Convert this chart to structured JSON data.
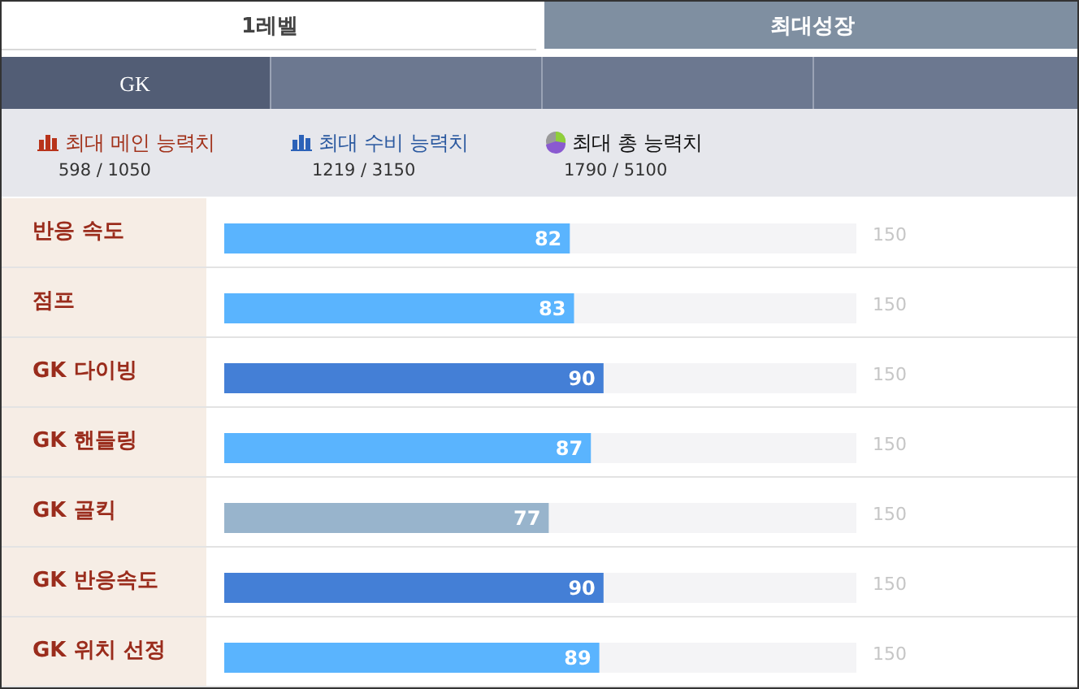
{
  "chart_data": {
    "type": "bar",
    "orientation": "horizontal",
    "categories": [
      "반응 속도",
      "점프",
      "GK 다이빙",
      "GK 핸들링",
      "GK 골킥",
      "GK 반응속도",
      "GK 위치 선정"
    ],
    "values": [
      82,
      83,
      90,
      87,
      77,
      90,
      89
    ],
    "colors": [
      "#5ab4fe",
      "#5ab4fe",
      "#447fd6",
      "#5ab4fe",
      "#98b4cc",
      "#447fd6",
      "#5ab4fe"
    ],
    "xlim": [
      0,
      150
    ],
    "data_labels": true,
    "annotations": [
      "1레벨",
      "최대성장",
      "GK",
      "최대 메인 능력치",
      "598 / 1050",
      "최대 수비 능력치",
      "1219 / 3150",
      "최대 총 능력치",
      "1790 / 5100",
      "150",
      "150",
      "150",
      "150",
      "150",
      "150",
      "150"
    ]
  }
}
